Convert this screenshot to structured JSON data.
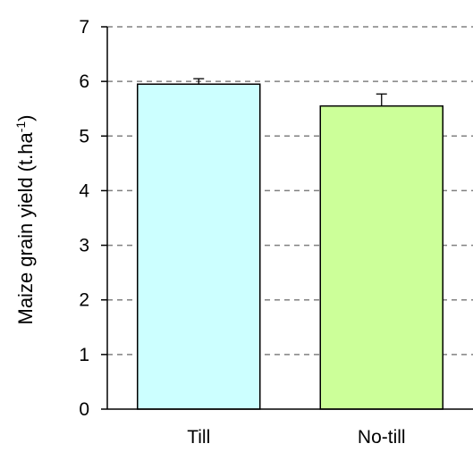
{
  "chart_data": {
    "type": "bar",
    "categories": [
      "Till",
      "No-till"
    ],
    "values": [
      5.95,
      5.55
    ],
    "error_bars": [
      0.1,
      0.22
    ],
    "ylabel": "Maize grain yield  (t.ha",
    "ylabel_superscript": "-1",
    "ylabel_close": ")",
    "ylim": [
      0,
      7
    ],
    "yticks": [
      0,
      1,
      2,
      3,
      4,
      5,
      6,
      7
    ],
    "grid": "dashed horizontal",
    "legend": "none",
    "colors": {
      "bars": [
        "#ccffff",
        "#ccff99"
      ],
      "grid": "#808080",
      "outline": "#000000"
    }
  }
}
